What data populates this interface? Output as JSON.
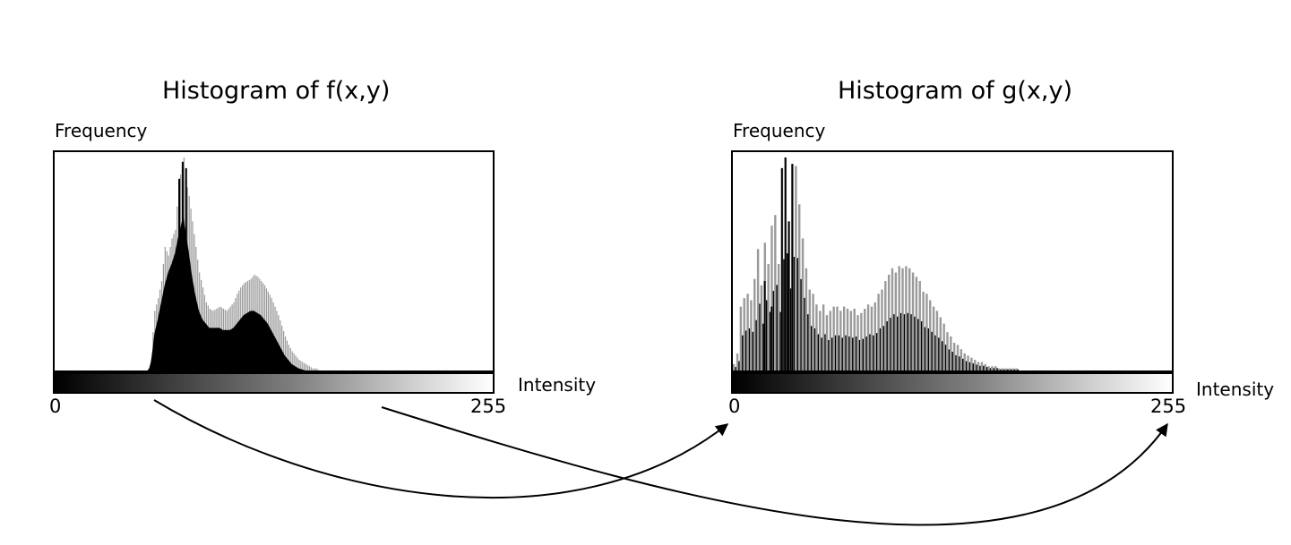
{
  "chart_data": [
    {
      "type": "bar",
      "title": "Histogram of f(x,y)",
      "ylabel": "Frequency",
      "xlabel": "Intensity",
      "x_ticks": [
        "0",
        "255"
      ],
      "xlim": [
        0,
        255
      ],
      "grid": false,
      "legend": "none",
      "colors": {
        "light_bars": "#9a9a9a",
        "dark_bars": "#000000"
      },
      "light_peaks": [
        [
          55,
          0
        ],
        [
          56,
          5
        ],
        [
          57,
          18
        ],
        [
          58,
          28
        ],
        [
          60,
          34
        ],
        [
          62,
          42
        ],
        [
          64,
          58
        ],
        [
          66,
          54
        ],
        [
          68,
          62
        ],
        [
          70,
          66
        ],
        [
          72,
          88
        ],
        [
          74,
          96
        ],
        [
          75,
          100
        ],
        [
          76,
          90
        ],
        [
          78,
          82
        ],
        [
          80,
          70
        ],
        [
          82,
          58
        ],
        [
          84,
          46
        ],
        [
          86,
          39
        ],
        [
          88,
          32
        ],
        [
          90,
          29
        ],
        [
          92,
          28
        ],
        [
          94,
          29
        ],
        [
          96,
          30
        ],
        [
          98,
          29
        ],
        [
          100,
          28
        ],
        [
          102,
          30
        ],
        [
          104,
          32
        ],
        [
          106,
          36
        ],
        [
          108,
          39
        ],
        [
          110,
          41
        ],
        [
          112,
          42
        ],
        [
          114,
          43
        ],
        [
          116,
          45
        ],
        [
          118,
          44
        ],
        [
          120,
          42
        ],
        [
          122,
          40
        ],
        [
          124,
          37
        ],
        [
          126,
          34
        ],
        [
          128,
          30
        ],
        [
          130,
          26
        ],
        [
          132,
          21
        ],
        [
          134,
          16
        ],
        [
          136,
          12
        ],
        [
          138,
          9
        ],
        [
          140,
          7
        ],
        [
          142,
          5
        ],
        [
          144,
          4
        ],
        [
          146,
          3
        ],
        [
          148,
          2
        ],
        [
          150,
          1
        ],
        [
          152,
          1
        ],
        [
          154,
          0
        ]
      ],
      "dark_profile": [
        [
          54,
          0
        ],
        [
          55,
          1
        ],
        [
          56,
          4
        ],
        [
          57,
          10
        ],
        [
          58,
          17
        ],
        [
          60,
          24
        ],
        [
          62,
          32
        ],
        [
          64,
          40
        ],
        [
          66,
          46
        ],
        [
          68,
          50
        ],
        [
          70,
          55
        ],
        [
          72,
          63
        ],
        [
          74,
          70
        ],
        [
          75,
          72
        ],
        [
          76,
          66
        ],
        [
          78,
          56
        ],
        [
          80,
          44
        ],
        [
          82,
          35
        ],
        [
          84,
          28
        ],
        [
          86,
          24
        ],
        [
          88,
          22
        ],
        [
          90,
          20
        ],
        [
          92,
          20
        ],
        [
          94,
          20
        ],
        [
          96,
          20
        ],
        [
          98,
          19
        ],
        [
          100,
          19
        ],
        [
          102,
          19
        ],
        [
          104,
          20
        ],
        [
          106,
          22
        ],
        [
          108,
          24
        ],
        [
          110,
          26
        ],
        [
          112,
          27
        ],
        [
          114,
          28
        ],
        [
          116,
          28
        ],
        [
          118,
          27
        ],
        [
          120,
          26
        ],
        [
          122,
          24
        ],
        [
          124,
          22
        ],
        [
          126,
          19
        ],
        [
          128,
          16
        ],
        [
          130,
          13
        ],
        [
          132,
          10
        ],
        [
          134,
          7
        ],
        [
          136,
          5
        ],
        [
          138,
          3
        ],
        [
          140,
          2
        ],
        [
          142,
          1
        ],
        [
          146,
          0
        ]
      ],
      "tall_spikes": [
        [
          72,
          90
        ],
        [
          74,
          98
        ],
        [
          76,
          95
        ]
      ]
    },
    {
      "type": "bar",
      "title": "Histogram of g(x,y)",
      "ylabel": "Frequency",
      "xlabel": "Intensity",
      "x_ticks": [
        "0",
        "255"
      ],
      "xlim": [
        0,
        255
      ],
      "grid": false,
      "legend": "none",
      "colors": {
        "light_bars": "#9a9a9a",
        "dark_bars": "#000000"
      },
      "peaks": [
        [
          0,
          3
        ],
        [
          2,
          8
        ],
        [
          4,
          30
        ],
        [
          6,
          34
        ],
        [
          8,
          36
        ],
        [
          10,
          33
        ],
        [
          12,
          43
        ],
        [
          14,
          57
        ],
        [
          16,
          40
        ],
        [
          18,
          60
        ],
        [
          20,
          50
        ],
        [
          22,
          68
        ],
        [
          24,
          73
        ],
        [
          26,
          50
        ],
        [
          28,
          95
        ],
        [
          30,
          100
        ],
        [
          32,
          70
        ],
        [
          34,
          97
        ],
        [
          36,
          96
        ],
        [
          38,
          78
        ],
        [
          40,
          62
        ],
        [
          42,
          48
        ],
        [
          44,
          38
        ],
        [
          46,
          36
        ],
        [
          48,
          31
        ],
        [
          50,
          28
        ],
        [
          52,
          31
        ],
        [
          54,
          26
        ],
        [
          56,
          28
        ],
        [
          58,
          30
        ],
        [
          60,
          30
        ],
        [
          62,
          28
        ],
        [
          64,
          30
        ],
        [
          66,
          29
        ],
        [
          68,
          28
        ],
        [
          70,
          29
        ],
        [
          72,
          26
        ],
        [
          74,
          27
        ],
        [
          76,
          29
        ],
        [
          78,
          31
        ],
        [
          80,
          30
        ],
        [
          82,
          32
        ],
        [
          84,
          36
        ],
        [
          86,
          38
        ],
        [
          88,
          42
        ],
        [
          90,
          45
        ],
        [
          92,
          48
        ],
        [
          94,
          46
        ],
        [
          96,
          49
        ],
        [
          98,
          48
        ],
        [
          100,
          49
        ],
        [
          102,
          48
        ],
        [
          104,
          46
        ],
        [
          106,
          44
        ],
        [
          108,
          42
        ],
        [
          110,
          37
        ],
        [
          112,
          36
        ],
        [
          114,
          33
        ],
        [
          116,
          30
        ],
        [
          118,
          28
        ],
        [
          120,
          25
        ],
        [
          122,
          22
        ],
        [
          124,
          18
        ],
        [
          126,
          16
        ],
        [
          128,
          13
        ],
        [
          130,
          12
        ],
        [
          132,
          10
        ],
        [
          134,
          8
        ],
        [
          136,
          7
        ],
        [
          138,
          6
        ],
        [
          140,
          5
        ],
        [
          142,
          4
        ],
        [
          144,
          4
        ],
        [
          146,
          3
        ],
        [
          148,
          2
        ],
        [
          150,
          2
        ],
        [
          152,
          2
        ],
        [
          154,
          1
        ],
        [
          156,
          1
        ],
        [
          158,
          1
        ],
        [
          160,
          1
        ],
        [
          164,
          1
        ]
      ],
      "dark_spikes": [
        [
          28,
          95
        ],
        [
          30,
          100
        ],
        [
          34,
          97
        ],
        [
          32,
          70
        ],
        [
          18,
          42
        ],
        [
          22,
          30
        ]
      ]
    }
  ]
}
